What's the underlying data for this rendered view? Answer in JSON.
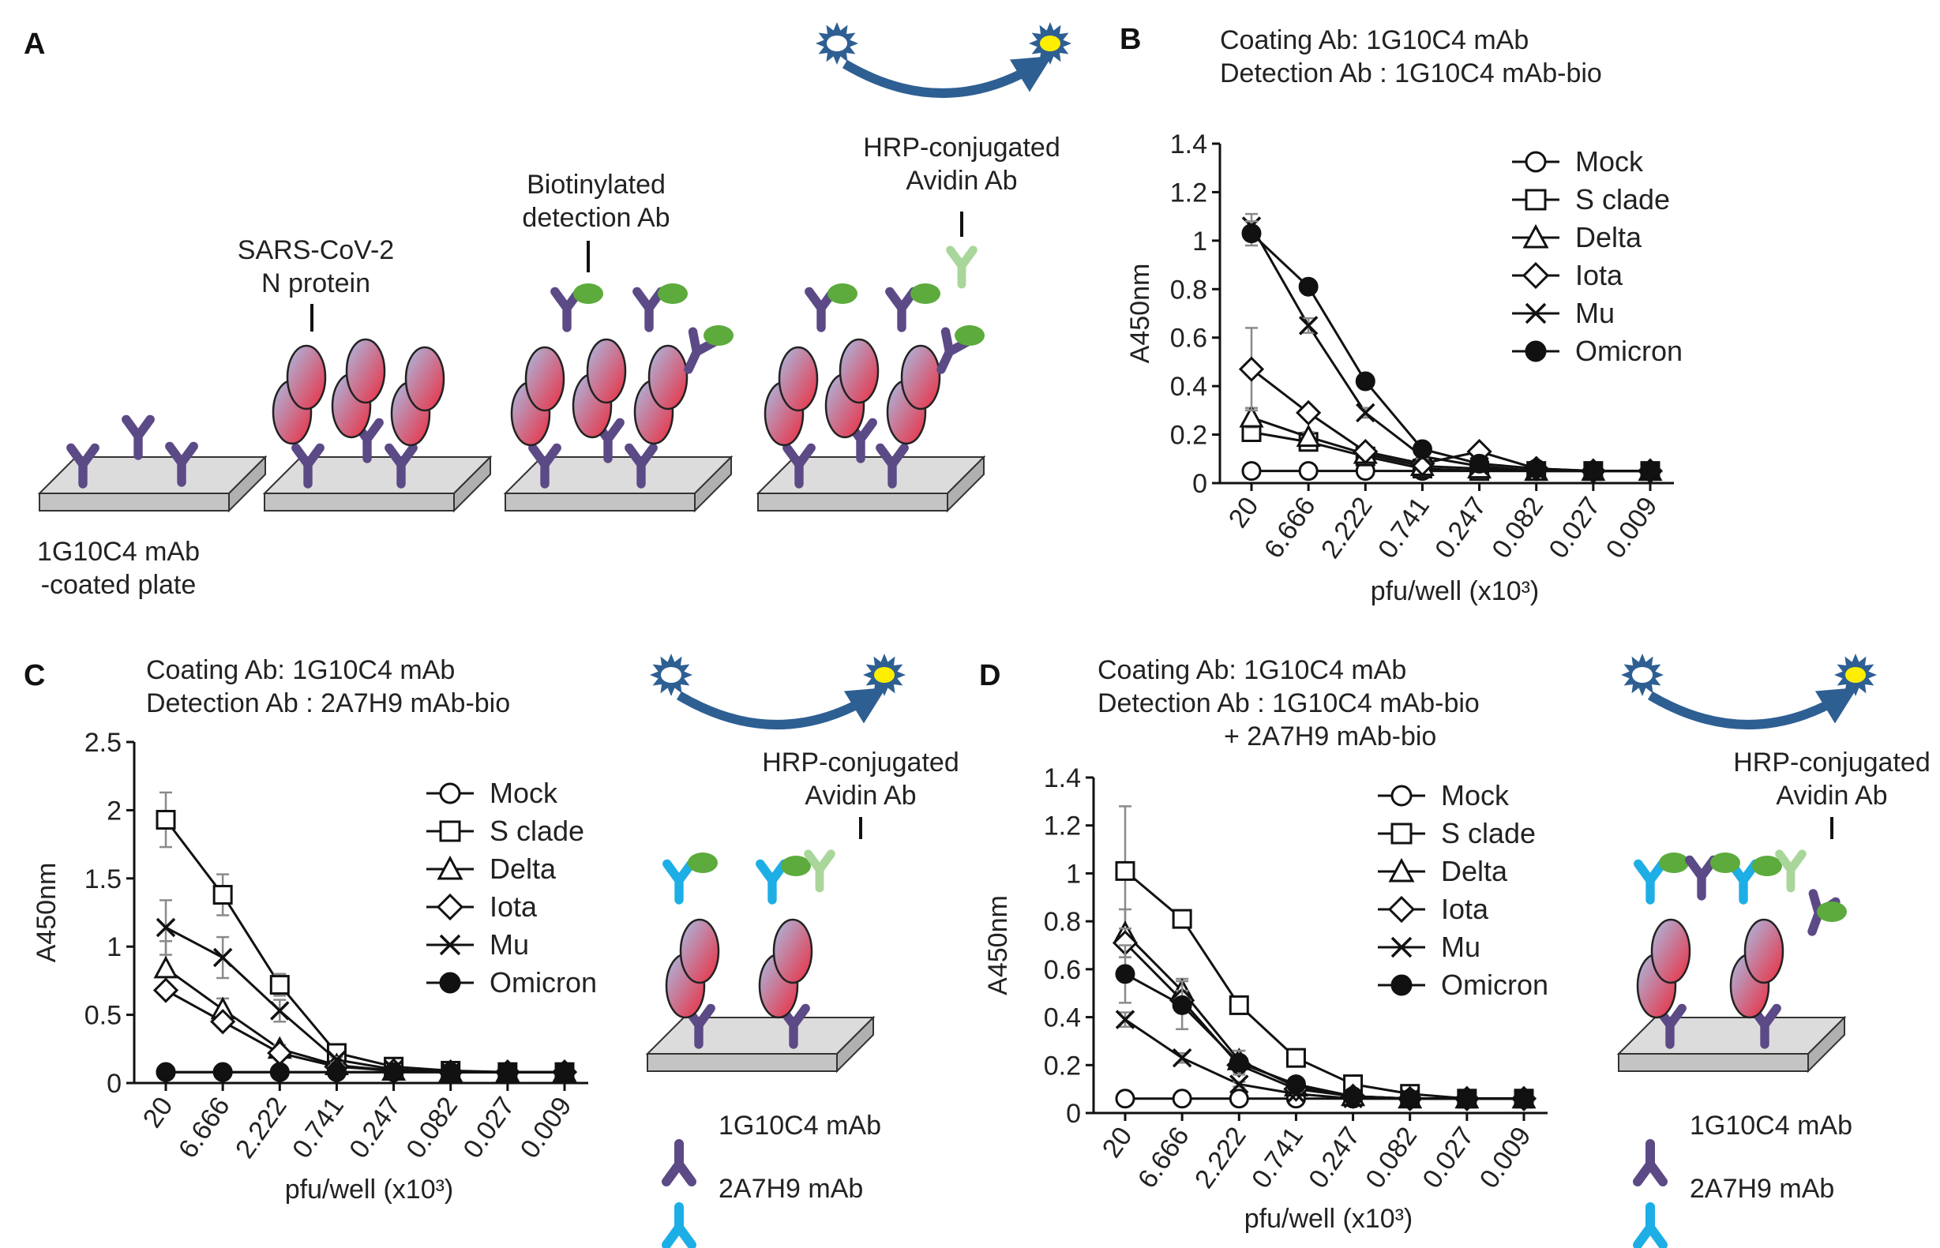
{
  "colors": {
    "antibody_1G10C4": "#5b4a86",
    "antibody_2A7H9": "#1eaee6",
    "detection_tag": "#5cab3c",
    "hrp_avidin": "#a9d69a",
    "hrp_enzyme": "#2e5f93",
    "hrp_signal": "#ffee00",
    "protein_red": "#ec2c3e",
    "protein_blue": "#a9bce4",
    "plate_top": "#dcdcdc",
    "plate_side": "#c4c4c4",
    "line": "#111111"
  },
  "panel_a": {
    "letter": "A",
    "plate_label_line1": "1G10C4 mAb",
    "plate_label_line2": "-coated plate",
    "n_protein_line1": "SARS-CoV-2",
    "n_protein_line2": "N protein",
    "detection_line1": "Biotinylated",
    "detection_line2": "detection Ab",
    "hrp_line1": "HRP-conjugated",
    "hrp_line2": "Avidin Ab",
    "icons": [
      "antibody-icon",
      "n-protein-icon",
      "biotin-icon",
      "hrp-enzyme-icon",
      "plate-icon"
    ]
  },
  "panel_c_schematic": {
    "hrp_line1": "HRP-conjugated",
    "hrp_line2": "Avidin Ab",
    "legend": [
      {
        "label": "1G10C4 mAb",
        "icon": "purple-antibody-icon"
      },
      {
        "label": "2A7H9 mAb",
        "icon": "blue-antibody-icon"
      }
    ]
  },
  "panel_d_schematic": {
    "hrp_line1": "HRP-conjugated",
    "hrp_line2": "Avidin Ab",
    "legend": [
      {
        "label": "1G10C4 mAb",
        "icon": "purple-antibody-icon"
      },
      {
        "label": "2A7H9 mAb",
        "icon": "blue-antibody-icon"
      }
    ]
  },
  "chart_data": [
    {
      "panel": "B",
      "type": "line",
      "header_line1": "Coating Ab: 1G10C4 mAb",
      "header_line2": "Detection Ab : 1G10C4 mAb-bio",
      "header_line3": "",
      "xlabel": "pfu/well (x10³)",
      "ylabel": "A450nm",
      "categories": [
        "20",
        "6.666",
        "2.222",
        "0.741",
        "0.247",
        "0.082",
        "0.027",
        "0.009"
      ],
      "ylim": [
        0,
        1.4
      ],
      "yticks": [
        "0",
        "0.2",
        "0.4",
        "0.6",
        "0.8",
        "1",
        "1.2",
        "1.4"
      ],
      "legend_position": "top-right",
      "series": [
        {
          "name": "Mock",
          "marker": "open-circle",
          "values": [
            0.05,
            0.05,
            0.05,
            0.05,
            0.05,
            0.05,
            0.05,
            0.05
          ],
          "errors": [
            0,
            0,
            0,
            0,
            0,
            0,
            0,
            0
          ]
        },
        {
          "name": "S clade",
          "marker": "open-square",
          "values": [
            0.21,
            0.17,
            0.11,
            0.06,
            0.05,
            0.05,
            0.05,
            0.05
          ],
          "errors": [
            0.02,
            0.01,
            0.01,
            0,
            0,
            0,
            0,
            0
          ]
        },
        {
          "name": "Delta",
          "marker": "open-triangle",
          "values": [
            0.27,
            0.19,
            0.12,
            0.07,
            0.06,
            0.05,
            0.05,
            0.05
          ],
          "errors": [
            0.04,
            0.02,
            0.01,
            0,
            0,
            0,
            0,
            0
          ]
        },
        {
          "name": "Iota",
          "marker": "open-diamond",
          "values": [
            0.47,
            0.29,
            0.13,
            0.08,
            0.13,
            0.06,
            0.05,
            0.05
          ],
          "errors": [
            0.17,
            0.02,
            0.01,
            0.01,
            0.01,
            0,
            0,
            0
          ]
        },
        {
          "name": "Mu",
          "marker": "cross",
          "values": [
            1.06,
            0.65,
            0.29,
            0.11,
            0.07,
            0.05,
            0.05,
            0.05
          ],
          "errors": [
            0.05,
            0.03,
            0.02,
            0.01,
            0,
            0,
            0,
            0
          ]
        },
        {
          "name": "Omicron",
          "marker": "filled-circle",
          "values": [
            1.03,
            0.81,
            0.42,
            0.14,
            0.08,
            0.06,
            0.05,
            0.05
          ],
          "errors": [
            0.05,
            0.02,
            0.02,
            0.01,
            0,
            0,
            0,
            0
          ]
        }
      ]
    },
    {
      "panel": "C",
      "type": "line",
      "header_line1": "Coating Ab: 1G10C4 mAb",
      "header_line2": "Detection Ab : 2A7H9 mAb-bio",
      "header_line3": "",
      "xlabel": "pfu/well (x10³)",
      "ylabel": "A450nm",
      "categories": [
        "20",
        "6.666",
        "2.222",
        "0.741",
        "0.247",
        "0.082",
        "0.027",
        "0.009"
      ],
      "ylim": [
        0,
        2.5
      ],
      "yticks": [
        "0",
        "0.5",
        "1",
        "1.5",
        "2",
        "2.5"
      ],
      "legend_position": "top-right",
      "series": [
        {
          "name": "Mock",
          "marker": "open-circle",
          "values": [
            0.08,
            0.08,
            0.08,
            0.08,
            0.08,
            0.08,
            0.08,
            0.08
          ],
          "errors": [
            0,
            0,
            0,
            0,
            0,
            0,
            0,
            0
          ]
        },
        {
          "name": "S clade",
          "marker": "open-square",
          "values": [
            1.93,
            1.38,
            0.72,
            0.22,
            0.12,
            0.09,
            0.08,
            0.08
          ],
          "errors": [
            0.2,
            0.15,
            0.08,
            0.03,
            0.01,
            0,
            0,
            0
          ]
        },
        {
          "name": "Delta",
          "marker": "open-triangle",
          "values": [
            0.84,
            0.54,
            0.25,
            0.13,
            0.09,
            0.08,
            0.08,
            0.08
          ],
          "errors": [
            0.2,
            0.08,
            0.03,
            0.01,
            0,
            0,
            0,
            0
          ]
        },
        {
          "name": "Iota",
          "marker": "open-diamond",
          "values": [
            0.68,
            0.45,
            0.22,
            0.12,
            0.09,
            0.08,
            0.08,
            0.08
          ],
          "errors": [
            0.04,
            0.04,
            0.02,
            0.01,
            0,
            0,
            0,
            0
          ]
        },
        {
          "name": "Mu",
          "marker": "cross",
          "values": [
            1.14,
            0.92,
            0.53,
            0.17,
            0.1,
            0.08,
            0.08,
            0.08
          ],
          "errors": [
            0.2,
            0.15,
            0.08,
            0.02,
            0,
            0,
            0,
            0
          ]
        },
        {
          "name": "Omicron",
          "marker": "filled-circle",
          "values": [
            0.08,
            0.08,
            0.08,
            0.08,
            0.08,
            0.08,
            0.08,
            0.08
          ],
          "errors": [
            0,
            0,
            0,
            0,
            0,
            0,
            0,
            0
          ]
        }
      ]
    },
    {
      "panel": "D",
      "type": "line",
      "header_line1": "Coating Ab: 1G10C4 mAb",
      "header_line2": "Detection Ab : 1G10C4 mAb-bio",
      "header_line3": "+ 2A7H9 mAb-bio",
      "xlabel": "pfu/well (x10³)",
      "ylabel": "A450nm",
      "categories": [
        "20",
        "6.666",
        "2.222",
        "0.741",
        "0.247",
        "0.082",
        "0.027",
        "0.009"
      ],
      "ylim": [
        0,
        1.4
      ],
      "yticks": [
        "0",
        "0.2",
        "0.4",
        "0.6",
        "0.8",
        "1",
        "1.2",
        "1.4"
      ],
      "legend_position": "top-right",
      "series": [
        {
          "name": "Mock",
          "marker": "open-circle",
          "values": [
            0.06,
            0.06,
            0.06,
            0.06,
            0.06,
            0.06,
            0.06,
            0.06
          ],
          "errors": [
            0,
            0,
            0,
            0,
            0,
            0,
            0,
            0
          ]
        },
        {
          "name": "S clade",
          "marker": "open-square",
          "values": [
            1.01,
            0.81,
            0.45,
            0.23,
            0.12,
            0.08,
            0.06,
            0.06
          ],
          "errors": [
            0.27,
            0.03,
            0.02,
            0.02,
            0.01,
            0,
            0,
            0
          ]
        },
        {
          "name": "Delta",
          "marker": "open-triangle",
          "values": [
            0.75,
            0.51,
            0.22,
            0.11,
            0.07,
            0.06,
            0.06,
            0.06
          ],
          "errors": [
            0.1,
            0.05,
            0.04,
            0.01,
            0,
            0,
            0,
            0
          ]
        },
        {
          "name": "Iota",
          "marker": "open-diamond",
          "values": [
            0.71,
            0.47,
            0.2,
            0.1,
            0.07,
            0.06,
            0.06,
            0.06
          ],
          "errors": [
            0.06,
            0.04,
            0.03,
            0.01,
            0,
            0,
            0,
            0
          ]
        },
        {
          "name": "Mu",
          "marker": "cross",
          "values": [
            0.39,
            0.23,
            0.12,
            0.08,
            0.06,
            0.06,
            0.06,
            0.06
          ],
          "errors": [
            0.03,
            0.02,
            0.01,
            0,
            0,
            0,
            0,
            0
          ]
        },
        {
          "name": "Omicron",
          "marker": "filled-circle",
          "values": [
            0.58,
            0.45,
            0.21,
            0.12,
            0.07,
            0.06,
            0.06,
            0.06
          ],
          "errors": [
            0.12,
            0.1,
            0.05,
            0.02,
            0,
            0,
            0,
            0
          ]
        }
      ]
    }
  ]
}
